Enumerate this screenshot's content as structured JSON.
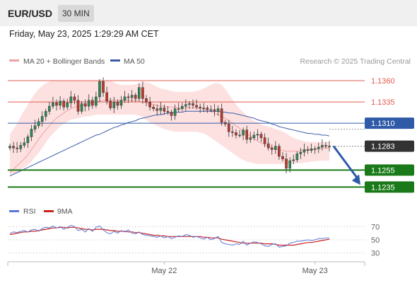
{
  "header": {
    "pair": "EUR/USD",
    "timeframe": "30 MIN",
    "timestamp": "Friday, May 23, 2025 1:29:29 AM CET"
  },
  "legend": {
    "ma20_bb": "MA 20 + Bollinger Bands",
    "ma50": "MA 50",
    "credit": "Research © 2025 Trading Central"
  },
  "rsi_legend": {
    "rsi": "RSI",
    "ma9": "9MA"
  },
  "colors": {
    "resistance": "#e05c4f",
    "pivot": "#2f5aa8",
    "support": "#1a7a1a",
    "last_price": "#333333",
    "bollinger_fill": "#fde1e1",
    "ma20": "#f0a0a0",
    "ma50": "#3b5ba9",
    "candle_up": "#2e8b57",
    "candle_down": "#c0392b",
    "rsi": "#5b78d6",
    "rsi_ma": "#cc2222",
    "arrow": "#2f5aa8"
  },
  "chart_data": {
    "type": "candlestick",
    "instrument": "EUR/USD",
    "timeframe": "30 MIN",
    "ylim": [
      1.1222,
      1.1375
    ],
    "x_tick_labels": [
      {
        "label": "May 22",
        "index": 43
      },
      {
        "label": "May 23",
        "index": 85
      }
    ],
    "levels": [
      {
        "label": "1.1360",
        "value": 1.136,
        "kind": "resistance"
      },
      {
        "label": "1.1335",
        "value": 1.1335,
        "kind": "resistance"
      },
      {
        "label": "1.1310",
        "value": 1.131,
        "kind": "pivot"
      },
      {
        "label": "1.1283",
        "value": 1.1283,
        "kind": "last"
      },
      {
        "label": "1.1255",
        "value": 1.1255,
        "kind": "support"
      },
      {
        "label": "1.1235",
        "value": 1.1235,
        "kind": "support"
      }
    ],
    "closes": [
      1.1283,
      1.1281,
      1.128,
      1.1284,
      1.1287,
      1.1294,
      1.1303,
      1.1307,
      1.1312,
      1.1318,
      1.1324,
      1.133,
      1.1334,
      1.1331,
      1.1336,
      1.1329,
      1.1334,
      1.1341,
      1.1337,
      1.1324,
      1.1333,
      1.133,
      1.1337,
      1.1331,
      1.1341,
      1.1359,
      1.1346,
      1.1336,
      1.1328,
      1.1335,
      1.1331,
      1.1337,
      1.1341,
      1.134,
      1.1343,
      1.1339,
      1.1352,
      1.1339,
      1.1335,
      1.1329,
      1.1327,
      1.1325,
      1.1328,
      1.1324,
      1.1323,
      1.1319,
      1.1327,
      1.1327,
      1.133,
      1.1332,
      1.1333,
      1.1331,
      1.1329,
      1.1328,
      1.1328,
      1.1326,
      1.1326,
      1.1324,
      1.1327,
      1.1311,
      1.1309,
      1.13,
      1.1299,
      1.1296,
      1.1296,
      1.1302,
      1.1291,
      1.1293,
      1.1296,
      1.1297,
      1.1293,
      1.1286,
      1.1281,
      1.1279,
      1.1283,
      1.1271,
      1.1268,
      1.1257,
      1.1266,
      1.1267,
      1.1274,
      1.1276,
      1.1279,
      1.1278,
      1.128,
      1.128,
      1.1282,
      1.1284,
      1.1283,
      1.1283
    ],
    "ma20": [
      1.1252,
      1.1256,
      1.126,
      1.1264,
      1.1268,
      1.1273,
      1.1279,
      1.1285,
      1.1291,
      1.1297,
      1.1302,
      1.1307,
      1.1312,
      1.1316,
      1.1319,
      1.1322,
      1.1325,
      1.1327,
      1.1329,
      1.133,
      1.1331,
      1.1332,
      1.1333,
      1.1334,
      1.1335,
      1.1336,
      1.1337,
      1.1337,
      1.1337,
      1.1337,
      1.1337,
      1.1337,
      1.1337,
      1.1337,
      1.1337,
      1.1337,
      1.1336,
      1.1335,
      1.1334,
      1.1333,
      1.1332,
      1.1331,
      1.133,
      1.133,
      1.1329,
      1.1329,
      1.1329,
      1.1328,
      1.1328,
      1.1328,
      1.1328,
      1.1328,
      1.1328,
      1.1327,
      1.1326,
      1.1325,
      1.1324,
      1.1322,
      1.132,
      1.1318,
      1.1316,
      1.1313,
      1.131,
      1.1307,
      1.1304,
      1.1301,
      1.1298,
      1.1295,
      1.1292,
      1.1289,
      1.1287,
      1.1285,
      1.1283,
      1.1281,
      1.128,
      1.1279,
      1.1278,
      1.1277,
      1.1277,
      1.1277,
      1.1277,
      1.1278,
      1.1278,
      1.1279,
      1.1279,
      1.128,
      1.128,
      1.1281,
      1.1281,
      1.1281
    ],
    "bb_upper": [
      1.1297,
      1.1303,
      1.131,
      1.1318,
      1.1325,
      1.1332,
      1.1339,
      1.1345,
      1.135,
      1.1354,
      1.1357,
      1.1359,
      1.136,
      1.136,
      1.136,
      1.136,
      1.136,
      1.136,
      1.136,
      1.136,
      1.136,
      1.136,
      1.136,
      1.136,
      1.136,
      1.136,
      1.136,
      1.136,
      1.136,
      1.1358,
      1.1356,
      1.1355,
      1.1355,
      1.1355,
      1.1355,
      1.1356,
      1.1357,
      1.1358,
      1.1358,
      1.1357,
      1.1355,
      1.1353,
      1.1351,
      1.135,
      1.1349,
      1.1348,
      1.1347,
      1.1347,
      1.1347,
      1.1347,
      1.1347,
      1.1347,
      1.1348,
      1.1349,
      1.1351,
      1.1353,
      1.1355,
      1.1357,
      1.1357,
      1.1355,
      1.135,
      1.1344,
      1.1338,
      1.1332,
      1.1327,
      1.1323,
      1.1319,
      1.1316,
      1.1313,
      1.1311,
      1.1309,
      1.1307,
      1.1306,
      1.1305,
      1.1303,
      1.1302,
      1.13,
      1.1298,
      1.1295,
      1.1293,
      1.1291,
      1.129,
      1.1289,
      1.1288,
      1.1288,
      1.1288,
      1.1288,
      1.1288,
      1.1288,
      1.1288
    ],
    "bb_lower": [
      1.1249,
      1.125,
      1.1252,
      1.1255,
      1.1258,
      1.1261,
      1.1265,
      1.127,
      1.1275,
      1.1281,
      1.1287,
      1.1293,
      1.1298,
      1.1302,
      1.1306,
      1.1309,
      1.1312,
      1.1314,
      1.1315,
      1.1316,
      1.1317,
      1.1318,
      1.1318,
      1.1319,
      1.132,
      1.132,
      1.132,
      1.132,
      1.132,
      1.132,
      1.132,
      1.132,
      1.132,
      1.132,
      1.132,
      1.132,
      1.1319,
      1.1317,
      1.1314,
      1.1311,
      1.1309,
      1.1307,
      1.1305,
      1.1303,
      1.1302,
      1.1301,
      1.13,
      1.13,
      1.13,
      1.13,
      1.13,
      1.13,
      1.13,
      1.1299,
      1.1298,
      1.1296,
      1.1293,
      1.129,
      1.1287,
      1.1284,
      1.1281,
      1.1278,
      1.1275,
      1.1272,
      1.1269,
      1.1267,
      1.1265,
      1.1264,
      1.1263,
      1.1262,
      1.1262,
      1.1262,
      1.1262,
      1.1262,
      1.1262,
      1.1262,
      1.1262,
      1.1262,
      1.1262,
      1.1262,
      1.1263,
      1.1263,
      1.1264,
      1.1264,
      1.1265,
      1.1265,
      1.1266,
      1.1266,
      1.1266,
      1.1266
    ],
    "ma50": [
      1.1248,
      1.125,
      1.1252,
      1.1254,
      1.1256,
      1.1258,
      1.126,
      1.1262,
      1.1264,
      1.1266,
      1.1268,
      1.127,
      1.1272,
      1.1274,
      1.1276,
      1.1278,
      1.128,
      1.1282,
      1.1284,
      1.1286,
      1.1288,
      1.129,
      1.1292,
      1.1294,
      1.1296,
      1.1297,
      1.1299,
      1.1301,
      1.1303,
      1.1305,
      1.1306,
      1.1308,
      1.1309,
      1.1311,
      1.1312,
      1.1313,
      1.1315,
      1.1316,
      1.1317,
      1.1318,
      1.1319,
      1.132,
      1.132,
      1.1321,
      1.1322,
      1.1322,
      1.1323,
      1.1323,
      1.1323,
      1.1324,
      1.1324,
      1.1324,
      1.1324,
      1.1324,
      1.1324,
      1.1324,
      1.1324,
      1.1324,
      1.1324,
      1.1323,
      1.1323,
      1.1322,
      1.1322,
      1.1321,
      1.132,
      1.1319,
      1.1318,
      1.1317,
      1.1316,
      1.1314,
      1.1313,
      1.1312,
      1.1311,
      1.1309,
      1.1308,
      1.1306,
      1.1305,
      1.1304,
      1.1303,
      1.1302,
      1.1301,
      1.13,
      1.1299,
      1.1298,
      1.1298,
      1.1297,
      1.1297,
      1.1296,
      1.1296,
      1.1295
    ],
    "forecast": {
      "from": 1.1283,
      "to": 1.1235,
      "direction": "down"
    },
    "rsi": {
      "levels": [
        70,
        50,
        30
      ],
      "ylim": [
        20,
        80
      ],
      "values": [
        60,
        62,
        61,
        63,
        64,
        62,
        65,
        66,
        63,
        67,
        69,
        68,
        71,
        68,
        70,
        66,
        69,
        72,
        70,
        64,
        66,
        62,
        67,
        63,
        69,
        71,
        65,
        61,
        59,
        63,
        60,
        64,
        62,
        65,
        60,
        59,
        62,
        58,
        57,
        56,
        55,
        54,
        56,
        53,
        55,
        52,
        54,
        56,
        55,
        58,
        57,
        54,
        55,
        53,
        51,
        54,
        50,
        52,
        55,
        46,
        44,
        43,
        42,
        44,
        43,
        48,
        42,
        45,
        47,
        46,
        44,
        41,
        40,
        43,
        44,
        39,
        40,
        41,
        45,
        46,
        48,
        48,
        49,
        50,
        49,
        50,
        52,
        52,
        53,
        53
      ],
      "ma9": [
        58,
        59,
        60,
        61,
        62,
        62,
        63,
        63,
        64,
        65,
        66,
        67,
        68,
        68,
        69,
        69,
        68,
        69,
        69,
        68,
        67,
        66,
        66,
        65,
        66,
        66,
        66,
        65,
        64,
        64,
        63,
        63,
        63,
        62,
        62,
        61,
        61,
        60,
        59,
        58,
        57,
        57,
        56,
        56,
        55,
        55,
        55,
        55,
        55,
        55,
        55,
        55,
        55,
        55,
        54,
        54,
        53,
        53,
        53,
        51,
        50,
        49,
        48,
        47,
        46,
        45,
        45,
        45,
        45,
        45,
        45,
        44,
        44,
        44,
        43,
        42,
        42,
        42,
        42,
        42,
        43,
        44,
        45,
        46,
        46,
        47,
        48,
        49,
        50,
        51
      ]
    }
  }
}
